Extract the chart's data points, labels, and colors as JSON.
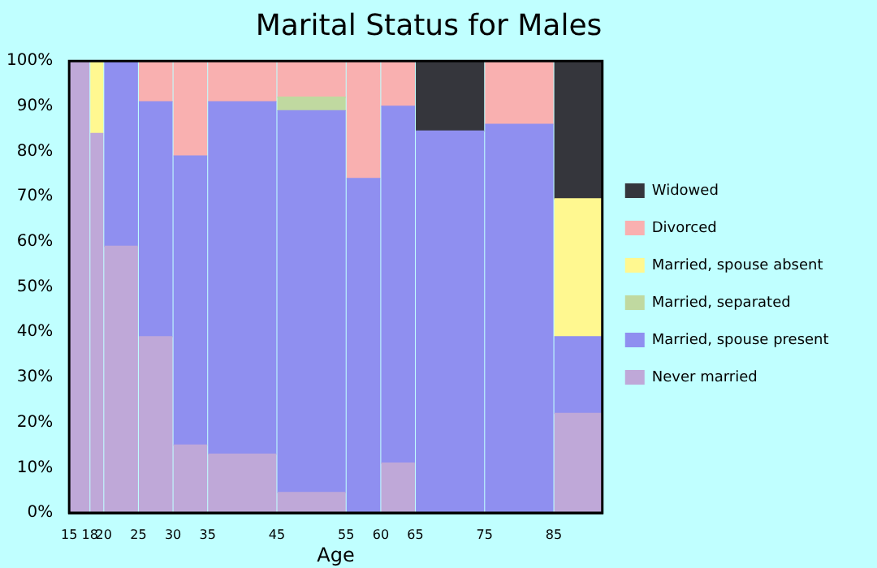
{
  "chart_data": {
    "type": "bar",
    "stacked": true,
    "title": "Marital Status for Males",
    "xlabel": "Age",
    "x": [
      16.5,
      19,
      22.5,
      27.5,
      32.5,
      40,
      50,
      57.5,
      62.5,
      70,
      80,
      88.5
    ],
    "xlim": [
      15,
      92
    ],
    "xticks": [
      15,
      18,
      20,
      25,
      30,
      35,
      45,
      55,
      60,
      65,
      75,
      85
    ],
    "ylim": [
      0,
      100
    ],
    "yticks": [
      {
        "value": 0,
        "label": "0%"
      },
      {
        "value": 10,
        "label": "10%"
      },
      {
        "value": 20,
        "label": "20%"
      },
      {
        "value": 30,
        "label": "30%"
      },
      {
        "value": 40,
        "label": "40%"
      },
      {
        "value": 50,
        "label": "50%"
      },
      {
        "value": 60,
        "label": "60%"
      },
      {
        "value": 70,
        "label": "70%"
      },
      {
        "value": 80,
        "label": "80%"
      },
      {
        "value": 90,
        "label": "90%"
      },
      {
        "value": 100,
        "label": "100%"
      }
    ],
    "legend": "right",
    "series": [
      {
        "name": "Never married",
        "color": "#bfa8d8",
        "values": [
          100,
          84,
          59,
          39,
          15,
          13,
          4.5,
          0,
          11,
          0,
          0,
          22
        ]
      },
      {
        "name": "Married, spouse present",
        "color": "#8f8ff0",
        "values": [
          0,
          0,
          41,
          52,
          64,
          78,
          84.5,
          74,
          79,
          84.5,
          86,
          17
        ]
      },
      {
        "name": "Married, separated",
        "color": "#c0d9a0",
        "values": [
          0,
          0,
          0,
          0,
          0,
          0,
          3,
          0,
          0,
          0,
          0,
          0
        ]
      },
      {
        "name": "Married, spouse absent",
        "color": "#fff890",
        "values": [
          0,
          16,
          0,
          0,
          0,
          0,
          0,
          0,
          0,
          0,
          0,
          30.5
        ]
      },
      {
        "name": "Divorced",
        "color": "#f9b0b0",
        "values": [
          0,
          0,
          0,
          9,
          21,
          9,
          8,
          26,
          10,
          0,
          14,
          0
        ]
      },
      {
        "name": "Widowed",
        "color": "#35363c",
        "values": [
          0,
          0,
          0,
          0,
          0,
          0,
          0,
          0,
          0,
          15.5,
          0,
          30.5
        ]
      }
    ]
  }
}
